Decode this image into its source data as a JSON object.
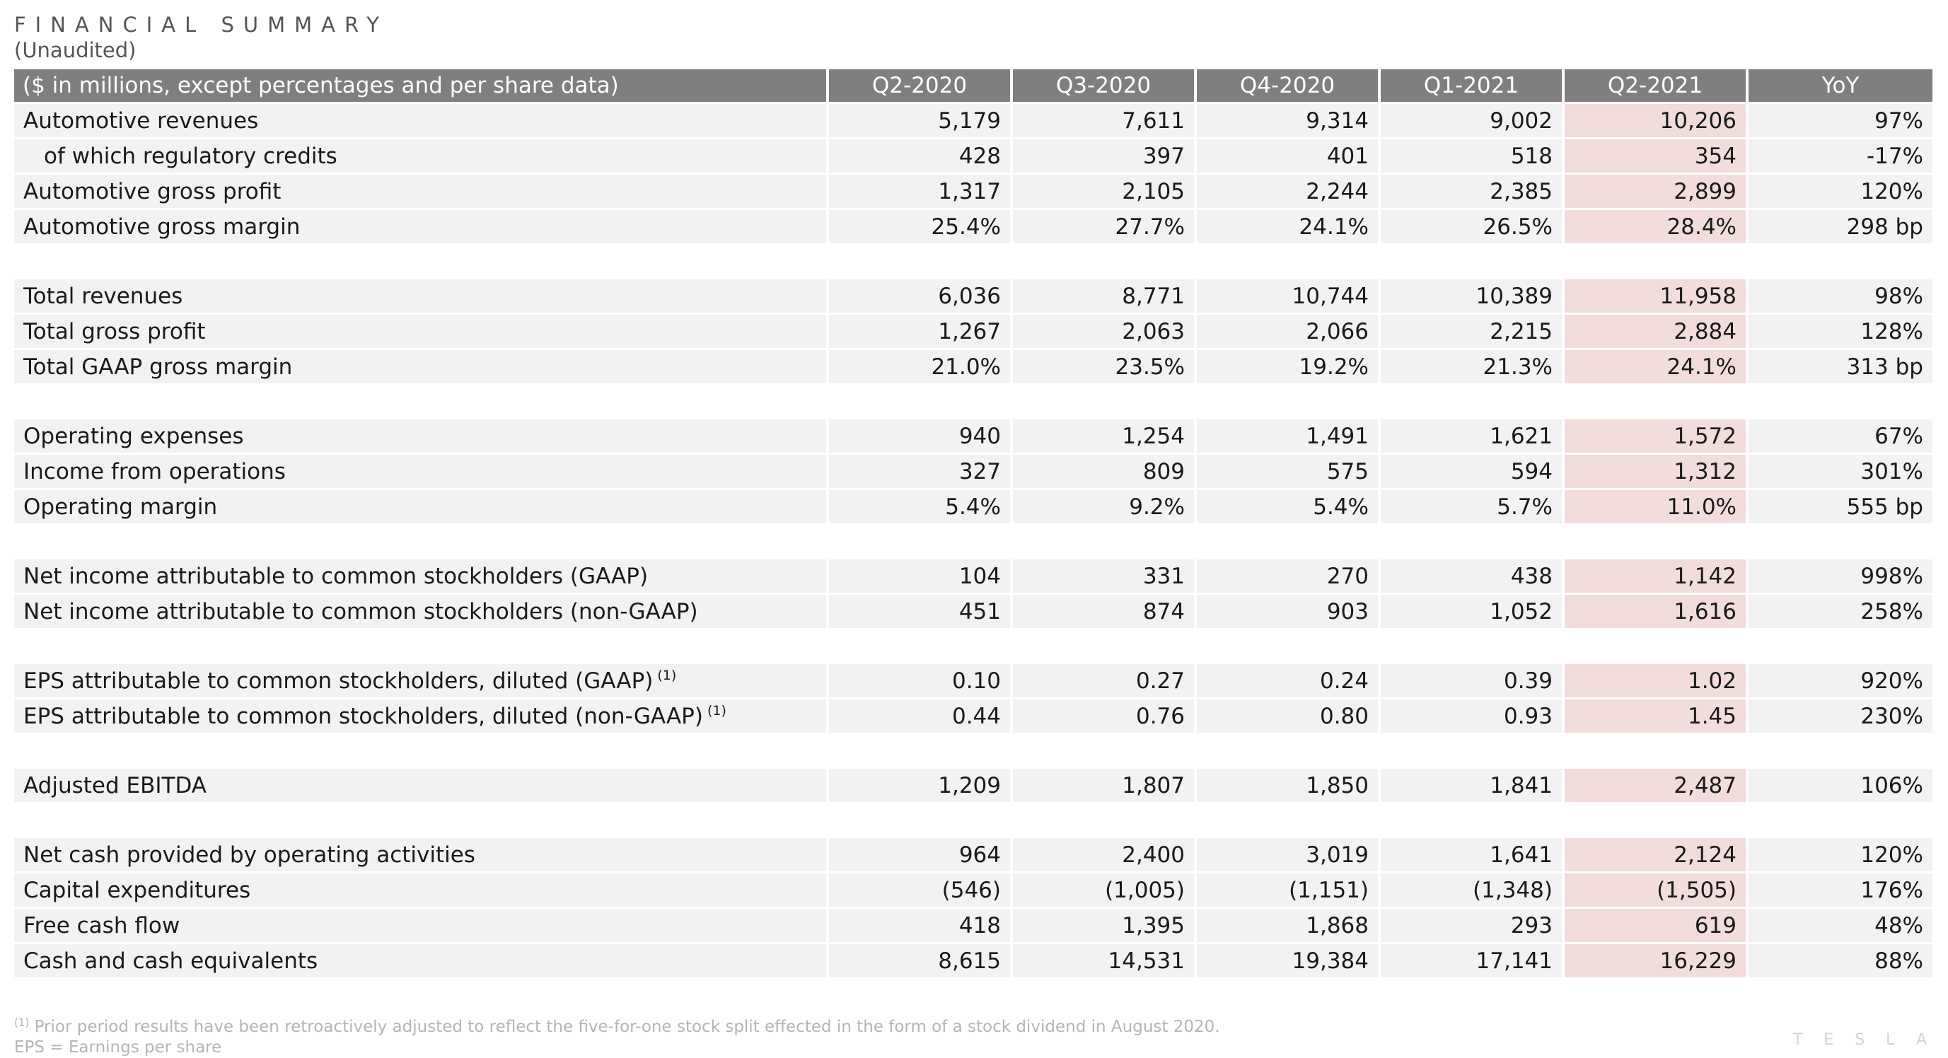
{
  "header": {
    "title": "FINANCIAL SUMMARY",
    "subtitle": "(Unaudited)"
  },
  "table": {
    "columns": [
      "($ in millions, except percentages and per share data)",
      "Q2-2020",
      "Q3-2020",
      "Q4-2020",
      "Q1-2021",
      "Q2-2021",
      "YoY"
    ],
    "highlight_color": "#f2dcdc",
    "header_color": "#7f7f7f",
    "sections": [
      [
        {
          "label": "Automotive revenues",
          "values": [
            "5,179",
            "7,611",
            "9,314",
            "9,002",
            "10,206",
            "97%"
          ]
        },
        {
          "label": "of which regulatory credits",
          "indent": true,
          "values": [
            "428",
            "397",
            "401",
            "518",
            "354",
            "-17%"
          ]
        },
        {
          "label": "Automotive gross profit",
          "values": [
            "1,317",
            "2,105",
            "2,244",
            "2,385",
            "2,899",
            "120%"
          ]
        },
        {
          "label": "Automotive gross margin",
          "values": [
            "25.4%",
            "27.7%",
            "24.1%",
            "26.5%",
            "28.4%",
            "298 bp"
          ]
        }
      ],
      [
        {
          "label": "Total revenues",
          "values": [
            "6,036",
            "8,771",
            "10,744",
            "10,389",
            "11,958",
            "98%"
          ]
        },
        {
          "label": "Total gross profit",
          "values": [
            "1,267",
            "2,063",
            "2,066",
            "2,215",
            "2,884",
            "128%"
          ]
        },
        {
          "label": "Total GAAP gross margin",
          "values": [
            "21.0%",
            "23.5%",
            "19.2%",
            "21.3%",
            "24.1%",
            "313 bp"
          ]
        }
      ],
      [
        {
          "label": "Operating expenses",
          "values": [
            "940",
            "1,254",
            "1,491",
            "1,621",
            "1,572",
            "67%"
          ]
        },
        {
          "label": "Income from operations",
          "values": [
            "327",
            "809",
            "575",
            "594",
            "1,312",
            "301%"
          ]
        },
        {
          "label": "Operating margin",
          "values": [
            "5.4%",
            "9.2%",
            "5.4%",
            "5.7%",
            "11.0%",
            "555 bp"
          ]
        }
      ],
      [
        {
          "label": "Net income attributable to common stockholders (GAAP)",
          "values": [
            "104",
            "331",
            "270",
            "438",
            "1,142",
            "998%"
          ]
        },
        {
          "label": "Net income attributable to common stockholders (non-GAAP)",
          "values": [
            "451",
            "874",
            "903",
            "1,052",
            "1,616",
            "258%"
          ]
        }
      ],
      [
        {
          "label": "EPS attributable to common stockholders, diluted (GAAP)",
          "footnote": "(1)",
          "values": [
            "0.10",
            "0.27",
            "0.24",
            "0.39",
            "1.02",
            "920%"
          ]
        },
        {
          "label": "EPS attributable to common stockholders, diluted (non-GAAP)",
          "footnote": "(1)",
          "values": [
            "0.44",
            "0.76",
            "0.80",
            "0.93",
            "1.45",
            "230%"
          ]
        }
      ],
      [
        {
          "label": "Adjusted EBITDA",
          "values": [
            "1,209",
            "1,807",
            "1,850",
            "1,841",
            "2,487",
            "106%"
          ]
        }
      ],
      [
        {
          "label": "Net cash provided by operating activities",
          "values": [
            "964",
            "2,400",
            "3,019",
            "1,641",
            "2,124",
            "120%"
          ]
        },
        {
          "label": "Capital expenditures",
          "values": [
            "(546)",
            "(1,005)",
            "(1,151)",
            "(1,348)",
            "(1,505)",
            "176%"
          ]
        },
        {
          "label": "Free cash flow",
          "values": [
            "418",
            "1,395",
            "1,868",
            "293",
            "619",
            "48%"
          ]
        },
        {
          "label": "Cash and cash equivalents",
          "values": [
            "8,615",
            "14,531",
            "19,384",
            "17,141",
            "16,229",
            "88%"
          ]
        }
      ]
    ]
  },
  "footnotes": {
    "note1_marker": "(1)",
    "note1_text": "Prior period results have been retroactively adjusted to reflect the five-for-one stock split effected in the form of a stock dividend in August 2020.",
    "note2_text": "EPS = Earnings per share"
  },
  "brand": {
    "text": "TESLA"
  }
}
